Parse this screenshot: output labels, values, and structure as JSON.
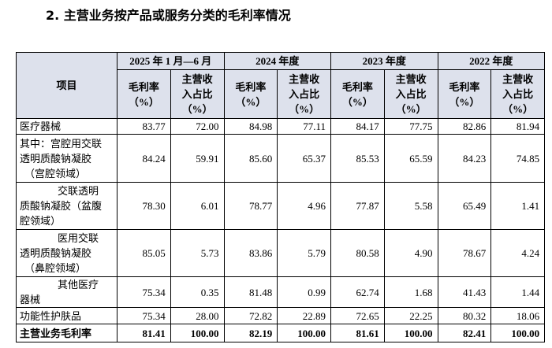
{
  "header": {
    "title": "2.  主营业务按产品或服务分类的毛利率情况"
  },
  "table": {
    "item_header": "项目",
    "groups": [
      "2025 年 1 月—6 月",
      "2024 年度",
      "2023 年度",
      "2022 年度"
    ],
    "subheaders": [
      [
        "毛利率",
        "（%）"
      ],
      [
        "主营收",
        "入占比",
        "（%）"
      ],
      [
        "毛利率",
        "（%）"
      ],
      [
        "主营收",
        "入占比",
        "（%）"
      ],
      [
        "毛利率",
        "（%）"
      ],
      [
        "主营收",
        "入占比",
        "（%）"
      ],
      [
        "毛利率",
        "（%）"
      ],
      [
        "主营收",
        "入占比",
        "（%）"
      ]
    ],
    "rows": [
      {
        "label": [
          "医疗器械"
        ],
        "values": [
          "83.77",
          "72.00",
          "84.98",
          "77.11",
          "84.17",
          "77.75",
          "82.86",
          "81.94"
        ]
      },
      {
        "label": [
          "其中：宫腔用交联",
          "透明质酸钠凝胶",
          "（宫腔领域）"
        ],
        "values": [
          "84.24",
          "59.91",
          "85.60",
          "65.37",
          "85.53",
          "65.59",
          "84.23",
          "74.85"
        ]
      },
      {
        "label": [
          "交联透明",
          "质酸钠凝胶（盆腹",
          "腔领域）"
        ],
        "values": [
          "78.30",
          "6.01",
          "78.77",
          "4.96",
          "77.87",
          "5.58",
          "65.49",
          "1.41"
        ]
      },
      {
        "label": [
          "医用交联",
          "透明质酸钠凝胶",
          "（鼻腔领域）"
        ],
        "values": [
          "85.05",
          "5.73",
          "83.86",
          "5.79",
          "80.58",
          "4.90",
          "78.67",
          "4.24"
        ]
      },
      {
        "label": [
          "其他医疗",
          "器械"
        ],
        "values": [
          "75.34",
          "0.35",
          "81.48",
          "0.99",
          "62.74",
          "1.68",
          "41.43",
          "1.44"
        ]
      },
      {
        "label": [
          "功能性护肤品"
        ],
        "values": [
          "75.34",
          "28.00",
          "72.82",
          "22.89",
          "72.65",
          "22.25",
          "80.32",
          "18.06"
        ]
      },
      {
        "label": [
          "主营业务毛利率"
        ],
        "values": [
          "81.41",
          "100.00",
          "82.19",
          "100.00",
          "81.61",
          "100.00",
          "82.41",
          "100.00"
        ]
      }
    ]
  }
}
